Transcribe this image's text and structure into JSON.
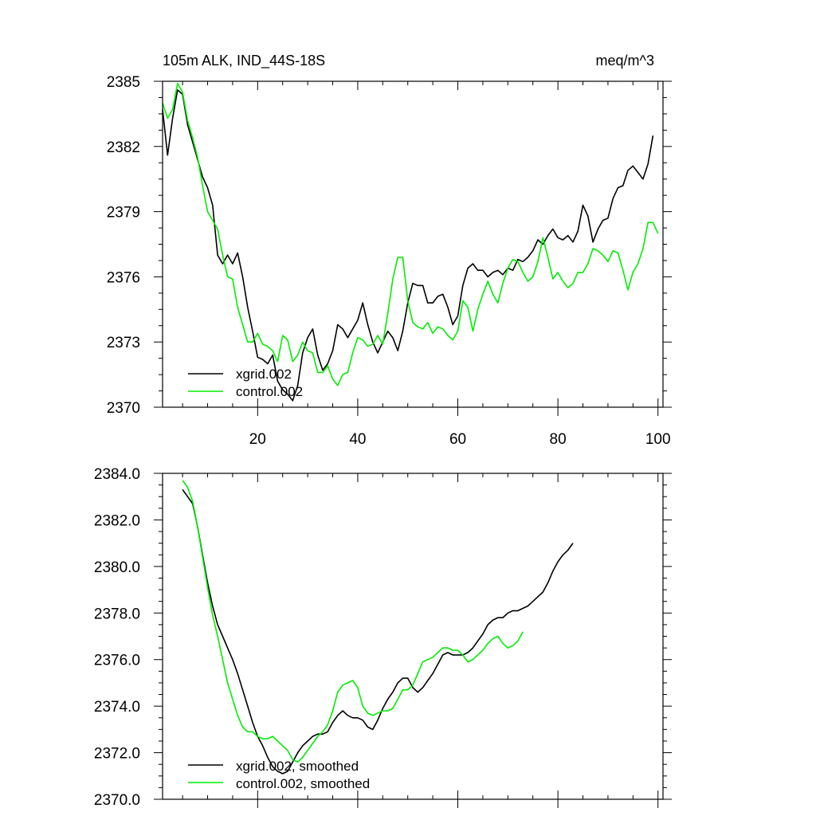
{
  "chart_data": [
    {
      "type": "line",
      "title": "105m ALK, IND_44S-18S",
      "units": "meq/m^3",
      "xlabel": "",
      "ylabel": "",
      "xlim": [
        1,
        101
      ],
      "ylim": [
        2370,
        2385
      ],
      "xticks": [
        20,
        40,
        60,
        80,
        100
      ],
      "xtick_labels": [
        "20",
        "40",
        "60",
        "80",
        "100"
      ],
      "yticks": [
        2370,
        2373,
        2376,
        2379,
        2382,
        2385
      ],
      "ytick_labels": [
        "2370",
        "2373",
        "2376",
        "2379",
        "2382",
        "2385"
      ],
      "legend": "bottom-left",
      "grid": false,
      "series": [
        {
          "name": "xgrid.002",
          "color": "#000000",
          "values": [
            2383.7,
            2381.6,
            2383.3,
            2384.6,
            2384.4,
            2383.0,
            2382.2,
            2381.4,
            2380.6,
            2380.1,
            2379.3,
            2377.0,
            2376.6,
            2377.0,
            2376.6,
            2377.1,
            2376.0,
            2374.6,
            2373.5,
            2372.3,
            2372.2,
            2372.0,
            2372.4,
            2371.2,
            2370.8,
            2370.6,
            2370.3,
            2371.0,
            2372.5,
            2373.2,
            2373.6,
            2372.4,
            2371.7,
            2372.0,
            2372.6,
            2373.8,
            2373.6,
            2373.2,
            2373.6,
            2374.0,
            2374.8,
            2373.8,
            2373.0,
            2372.5,
            2373.0,
            2373.5,
            2373.2,
            2372.6,
            2373.5,
            2374.8,
            2375.7,
            2375.6,
            2375.6,
            2374.8,
            2374.8,
            2375.1,
            2375.2,
            2374.6,
            2373.8,
            2374.2,
            2375.6,
            2376.4,
            2376.6,
            2376.3,
            2376.3,
            2376.0,
            2376.2,
            2376.3,
            2376.1,
            2376.4,
            2376.3,
            2376.8,
            2376.7,
            2376.9,
            2377.2,
            2377.7,
            2377.5,
            2377.9,
            2378.2,
            2377.8,
            2377.7,
            2377.9,
            2377.6,
            2378.1,
            2379.3,
            2378.8,
            2377.6,
            2378.2,
            2378.6,
            2378.7,
            2379.6,
            2380.1,
            2380.2,
            2380.9,
            2381.1,
            2380.8,
            2380.5,
            2381.2,
            2382.5
          ]
        },
        {
          "name": "control.002",
          "color": "#00ee00",
          "values": [
            2384.0,
            2383.3,
            2383.7,
            2384.9,
            2384.5,
            2383.2,
            2382.4,
            2381.5,
            2380.2,
            2379.0,
            2378.6,
            2378.2,
            2377.0,
            2376.0,
            2375.9,
            2374.6,
            2373.8,
            2373.0,
            2373.0,
            2373.4,
            2372.9,
            2372.8,
            2372.6,
            2372.1,
            2373.3,
            2373.1,
            2372.1,
            2372.4,
            2373.0,
            2372.6,
            2372.5,
            2371.6,
            2371.6,
            2371.9,
            2371.3,
            2371.0,
            2371.5,
            2371.6,
            2372.5,
            2373.2,
            2373.1,
            2372.8,
            2372.9,
            2373.3,
            2372.9,
            2374.3,
            2375.9,
            2376.9,
            2376.9,
            2374.9,
            2373.9,
            2373.7,
            2373.6,
            2373.9,
            2373.4,
            2373.7,
            2373.6,
            2373.3,
            2373.1,
            2373.5,
            2374.9,
            2374.6,
            2373.5,
            2374.5,
            2375.2,
            2375.8,
            2375.2,
            2374.8,
            2375.7,
            2376.4,
            2376.8,
            2376.7,
            2376.2,
            2375.8,
            2376.0,
            2376.7,
            2377.8,
            2376.9,
            2375.9,
            2376.2,
            2375.8,
            2375.5,
            2375.7,
            2376.2,
            2376.2,
            2376.6,
            2377.3,
            2377.2,
            2377.0,
            2376.7,
            2377.2,
            2377.1,
            2376.3,
            2375.4,
            2376.2,
            2376.6,
            2377.3,
            2378.5,
            2378.5,
            2378.0
          ]
        }
      ]
    },
    {
      "type": "line",
      "title": "",
      "xlabel": "",
      "ylabel": "",
      "xlim": [
        1,
        101
      ],
      "ylim": [
        2370,
        2384
      ],
      "xticks": [
        20,
        40,
        60,
        80,
        100
      ],
      "yticks": [
        2370,
        2372,
        2374,
        2376,
        2378,
        2380,
        2382,
        2384
      ],
      "ytick_labels": [
        "2370.0",
        "2372.0",
        "2374.0",
        "2376.0",
        "2378.0",
        "2380.0",
        "2382.0",
        "2384.0"
      ],
      "legend": "bottom-left",
      "grid": false,
      "series": [
        {
          "name": "xgrid.002, smoothed",
          "color": "#000000",
          "values": [
            null,
            null,
            null,
            null,
            2383.3,
            2383.0,
            2382.7,
            2381.7,
            2380.5,
            2379.3,
            2378.3,
            2377.5,
            2377.0,
            2376.5,
            2376.0,
            2375.4,
            2374.7,
            2374.0,
            2373.3,
            2372.7,
            2372.3,
            2371.8,
            2371.4,
            2371.2,
            2371.1,
            2371.2,
            2371.6,
            2372.0,
            2372.3,
            2372.5,
            2372.7,
            2372.8,
            2372.8,
            2372.9,
            2373.3,
            2373.6,
            2373.8,
            2373.6,
            2373.5,
            2373.5,
            2373.4,
            2373.1,
            2373.0,
            2373.4,
            2373.9,
            2374.3,
            2374.6,
            2375.0,
            2375.2,
            2375.2,
            2374.8,
            2374.6,
            2374.8,
            2375.1,
            2375.4,
            2375.8,
            2376.2,
            2376.3,
            2376.2,
            2376.2,
            2376.2,
            2376.3,
            2376.5,
            2376.8,
            2377.1,
            2377.5,
            2377.7,
            2377.8,
            2377.8,
            2378.0,
            2378.1,
            2378.1,
            2378.2,
            2378.3,
            2378.5,
            2378.7,
            2378.9,
            2379.3,
            2379.8,
            2380.2,
            2380.5,
            2380.7,
            2381.0
          ]
        },
        {
          "name": "control.002, smoothed",
          "color": "#00ee00",
          "values": [
            null,
            null,
            null,
            null,
            2383.7,
            2383.4,
            2382.8,
            2381.7,
            2380.4,
            2379.1,
            2377.9,
            2377.0,
            2376.0,
            2375.0,
            2374.3,
            2373.6,
            2373.1,
            2372.9,
            2372.9,
            2372.7,
            2372.6,
            2372.6,
            2372.7,
            2372.5,
            2372.3,
            2372.1,
            2371.7,
            2371.6,
            2371.8,
            2372.1,
            2372.4,
            2372.7,
            2372.9,
            2373.2,
            2373.8,
            2374.6,
            2374.9,
            2375.0,
            2375.1,
            2374.8,
            2374.0,
            2373.7,
            2373.6,
            2373.7,
            2373.8,
            2373.8,
            2373.9,
            2374.3,
            2374.7,
            2374.7,
            2374.9,
            2375.4,
            2375.9,
            2376.0,
            2376.1,
            2376.3,
            2376.5,
            2376.5,
            2376.4,
            2376.4,
            2376.2,
            2375.9,
            2376.0,
            2376.2,
            2376.4,
            2376.7,
            2376.9,
            2377.0,
            2376.7,
            2376.5,
            2376.6,
            2376.8,
            2377.2
          ]
        }
      ]
    }
  ]
}
